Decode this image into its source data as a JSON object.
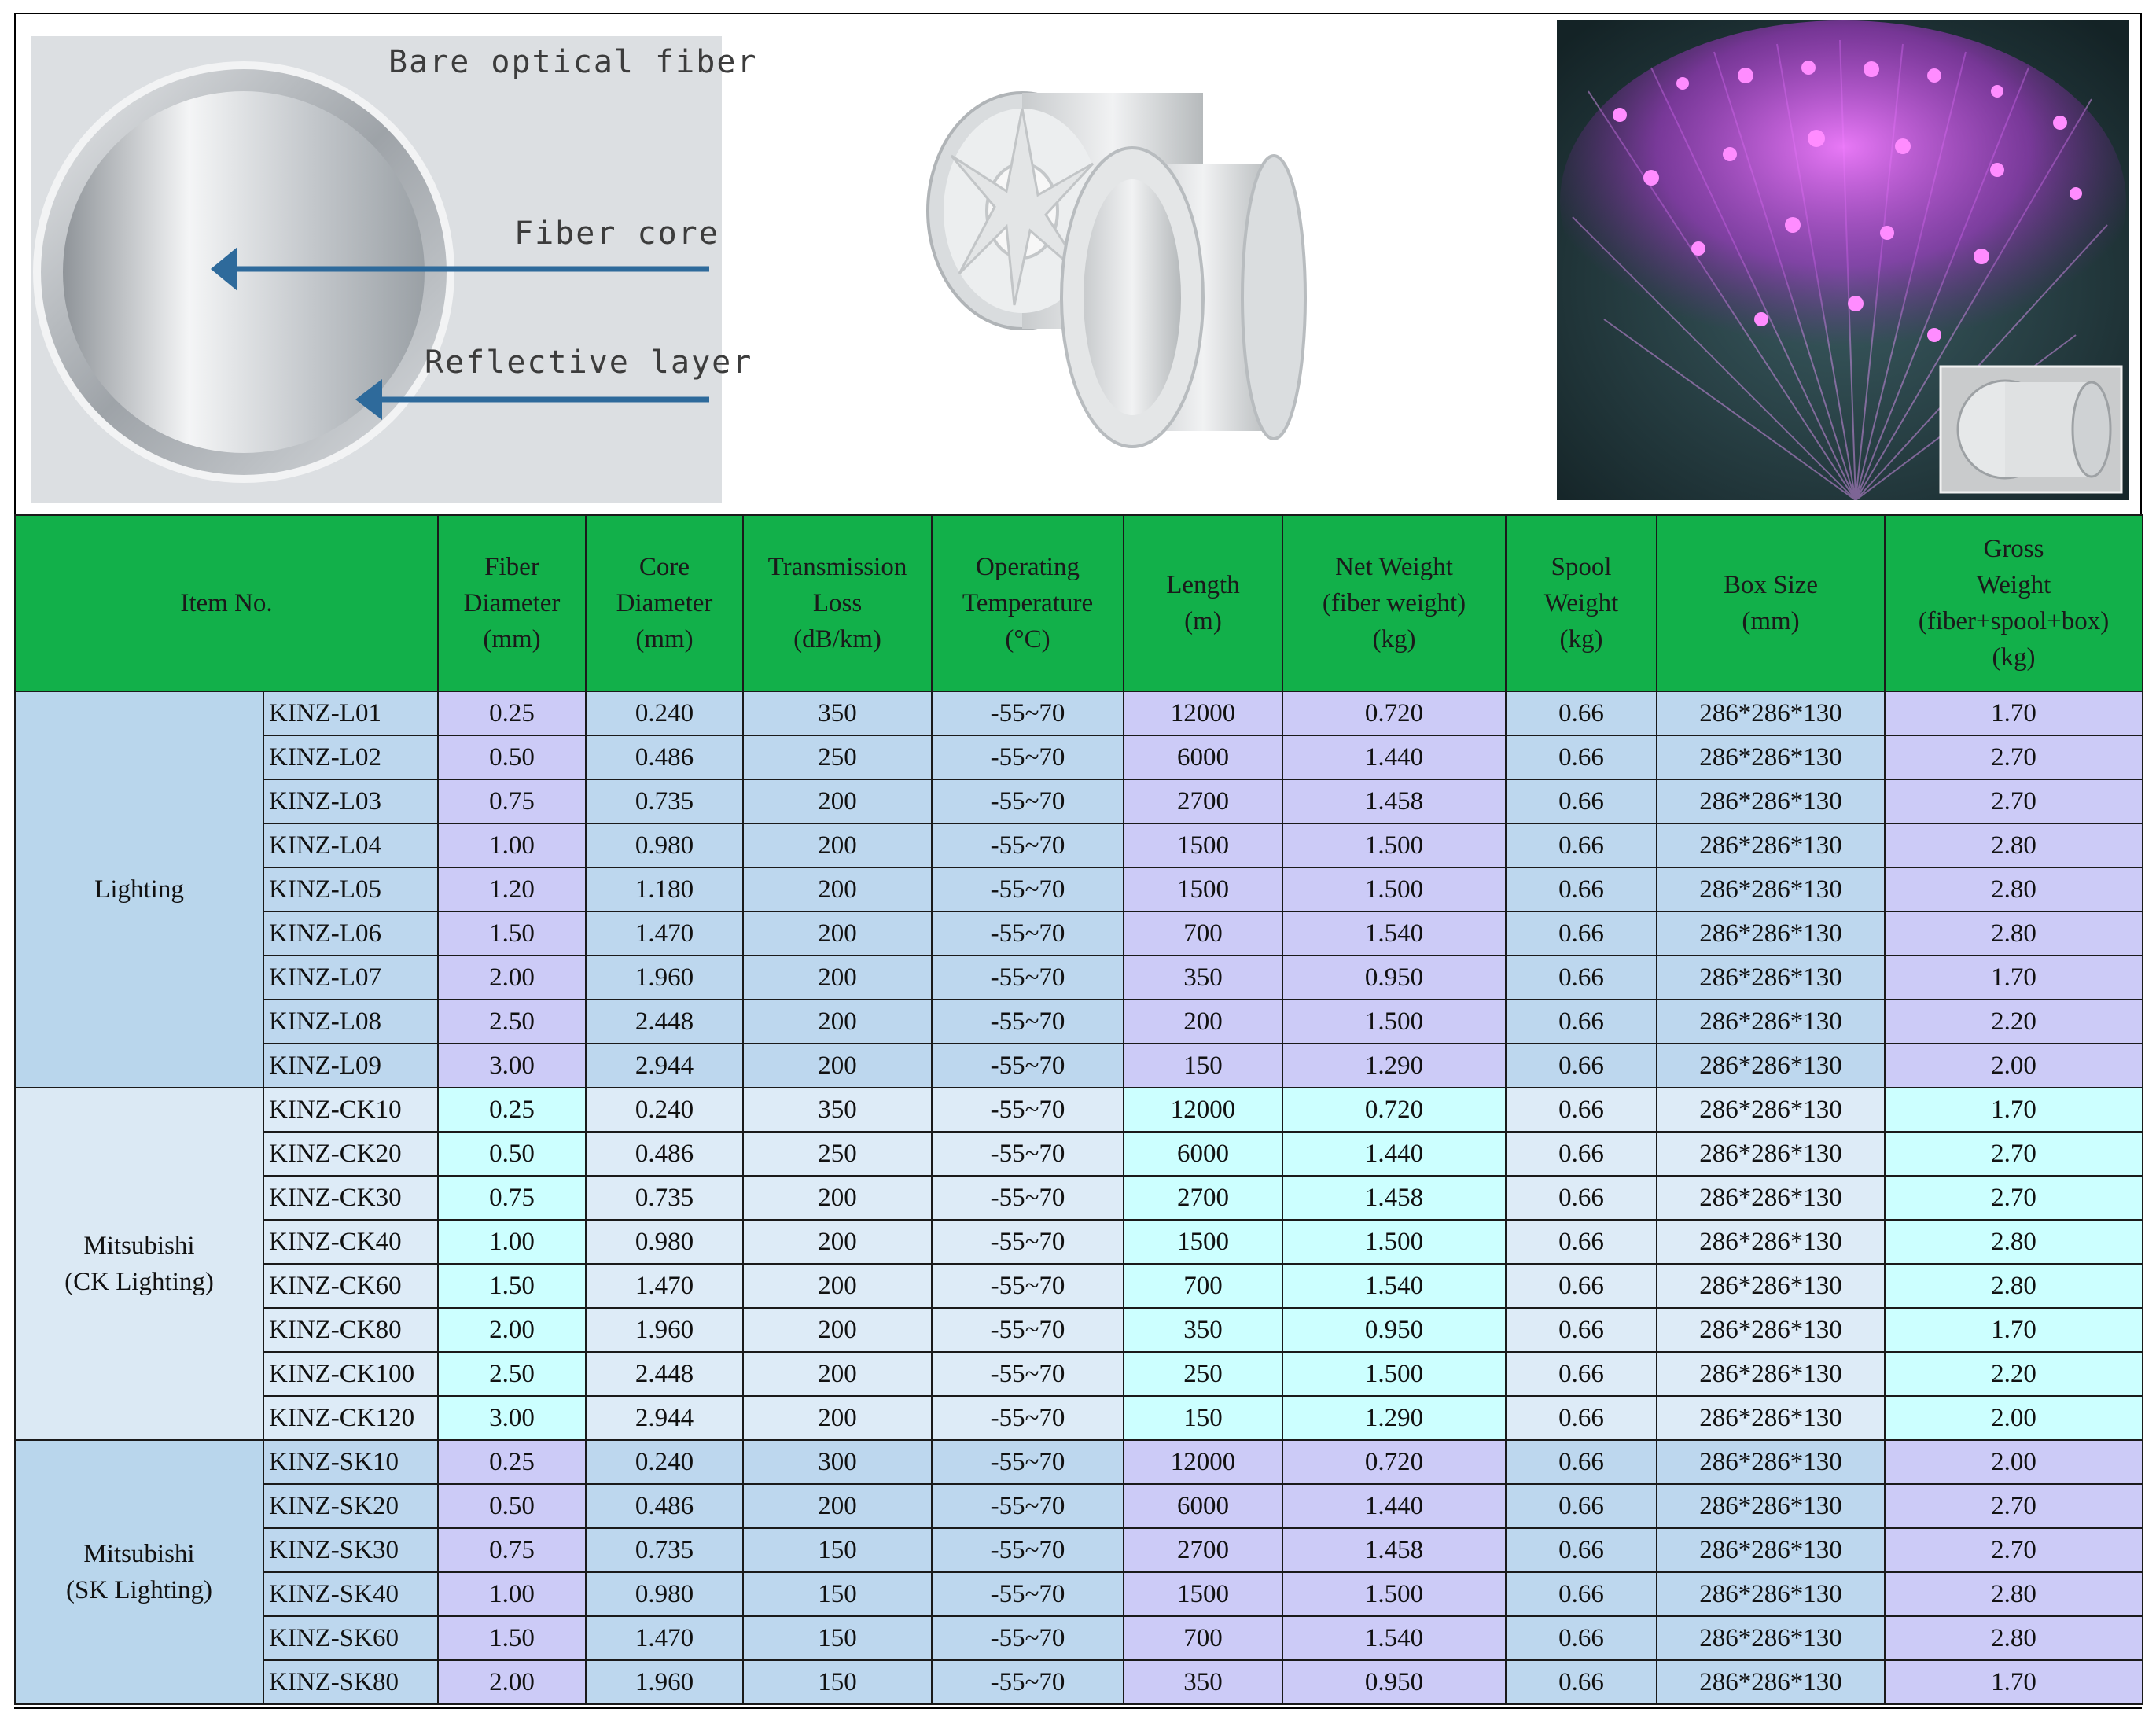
{
  "diagram": {
    "label_bare": "Bare optical fiber",
    "label_core": "Fiber core",
    "label_reflective": "Reflective layer"
  },
  "table": {
    "headers": [
      {
        "key": "item",
        "text": "Item No."
      },
      {
        "key": "fiber_dia",
        "lines": [
          "Fiber",
          "Diameter",
          "(mm)"
        ]
      },
      {
        "key": "core_dia",
        "lines": [
          "Core",
          "Diameter",
          "(mm)"
        ]
      },
      {
        "key": "loss",
        "lines": [
          "Transmission",
          "Loss",
          "(dB/km)"
        ]
      },
      {
        "key": "temp",
        "lines": [
          "Operating",
          "Temperature",
          "(°C)"
        ]
      },
      {
        "key": "length",
        "lines": [
          "Length",
          "(m)"
        ]
      },
      {
        "key": "net",
        "lines": [
          "Net Weight",
          "(fiber weight)",
          "(kg)"
        ]
      },
      {
        "key": "spool",
        "lines": [
          "Spool",
          "Weight",
          "(kg)"
        ]
      },
      {
        "key": "box",
        "lines": [
          "Box Size",
          "(mm)"
        ]
      },
      {
        "key": "gross",
        "lines": [
          "Gross",
          "Weight",
          "(fiber+spool+box)",
          "(kg)"
        ]
      }
    ],
    "groups": [
      {
        "id": "lighting",
        "name_lines": [
          "Lighting"
        ],
        "rows": [
          [
            "KINZ-L01",
            "0.25",
            "0.240",
            "350",
            "-55~70",
            "12000",
            "0.720",
            "0.66",
            "286*286*130",
            "1.70"
          ],
          [
            "KINZ-L02",
            "0.50",
            "0.486",
            "250",
            "-55~70",
            "6000",
            "1.440",
            "0.66",
            "286*286*130",
            "2.70"
          ],
          [
            "KINZ-L03",
            "0.75",
            "0.735",
            "200",
            "-55~70",
            "2700",
            "1.458",
            "0.66",
            "286*286*130",
            "2.70"
          ],
          [
            "KINZ-L04",
            "1.00",
            "0.980",
            "200",
            "-55~70",
            "1500",
            "1.500",
            "0.66",
            "286*286*130",
            "2.80"
          ],
          [
            "KINZ-L05",
            "1.20",
            "1.180",
            "200",
            "-55~70",
            "1500",
            "1.500",
            "0.66",
            "286*286*130",
            "2.80"
          ],
          [
            "KINZ-L06",
            "1.50",
            "1.470",
            "200",
            "-55~70",
            "700",
            "1.540",
            "0.66",
            "286*286*130",
            "2.80"
          ],
          [
            "KINZ-L07",
            "2.00",
            "1.960",
            "200",
            "-55~70",
            "350",
            "0.950",
            "0.66",
            "286*286*130",
            "1.70"
          ],
          [
            "KINZ-L08",
            "2.50",
            "2.448",
            "200",
            "-55~70",
            "200",
            "1.500",
            "0.66",
            "286*286*130",
            "2.20"
          ],
          [
            "KINZ-L09",
            "3.00",
            "2.944",
            "200",
            "-55~70",
            "150",
            "1.290",
            "0.66",
            "286*286*130",
            "2.00"
          ]
        ]
      },
      {
        "id": "ck",
        "name_lines": [
          "Mitsubishi",
          "(CK Lighting)"
        ],
        "rows": [
          [
            "KINZ-CK10",
            "0.25",
            "0.240",
            "350",
            "-55~70",
            "12000",
            "0.720",
            "0.66",
            "286*286*130",
            "1.70"
          ],
          [
            "KINZ-CK20",
            "0.50",
            "0.486",
            "250",
            "-55~70",
            "6000",
            "1.440",
            "0.66",
            "286*286*130",
            "2.70"
          ],
          [
            "KINZ-CK30",
            "0.75",
            "0.735",
            "200",
            "-55~70",
            "2700",
            "1.458",
            "0.66",
            "286*286*130",
            "2.70"
          ],
          [
            "KINZ-CK40",
            "1.00",
            "0.980",
            "200",
            "-55~70",
            "1500",
            "1.500",
            "0.66",
            "286*286*130",
            "2.80"
          ],
          [
            "KINZ-CK60",
            "1.50",
            "1.470",
            "200",
            "-55~70",
            "700",
            "1.540",
            "0.66",
            "286*286*130",
            "2.80"
          ],
          [
            "KINZ-CK80",
            "2.00",
            "1.960",
            "200",
            "-55~70",
            "350",
            "0.950",
            "0.66",
            "286*286*130",
            "1.70"
          ],
          [
            "KINZ-CK100",
            "2.50",
            "2.448",
            "200",
            "-55~70",
            "250",
            "1.500",
            "0.66",
            "286*286*130",
            "2.20"
          ],
          [
            "KINZ-CK120",
            "3.00",
            "2.944",
            "200",
            "-55~70",
            "150",
            "1.290",
            "0.66",
            "286*286*130",
            "2.00"
          ]
        ]
      },
      {
        "id": "sk",
        "name_lines": [
          "Mitsubishi",
          "(SK Lighting)"
        ],
        "rows": [
          [
            "KINZ-SK10",
            "0.25",
            "0.240",
            "300",
            "-55~70",
            "12000",
            "0.720",
            "0.66",
            "286*286*130",
            "2.00"
          ],
          [
            "KINZ-SK20",
            "0.50",
            "0.486",
            "200",
            "-55~70",
            "6000",
            "1.440",
            "0.66",
            "286*286*130",
            "2.70"
          ],
          [
            "KINZ-SK30",
            "0.75",
            "0.735",
            "150",
            "-55~70",
            "2700",
            "1.458",
            "0.66",
            "286*286*130",
            "2.70"
          ],
          [
            "KINZ-SK40",
            "1.00",
            "0.980",
            "150",
            "-55~70",
            "1500",
            "1.500",
            "0.66",
            "286*286*130",
            "2.80"
          ],
          [
            "KINZ-SK60",
            "1.50",
            "1.470",
            "150",
            "-55~70",
            "700",
            "1.540",
            "0.66",
            "286*286*130",
            "2.80"
          ],
          [
            "KINZ-SK80",
            "2.00",
            "1.960",
            "150",
            "-55~70",
            "350",
            "0.950",
            "0.66",
            "286*286*130",
            "1.70"
          ]
        ]
      }
    ],
    "colors": {
      "header_green": "#12b04a",
      "blue_band": "#bdd7ee",
      "lavender_band": "#cccbf7",
      "light_blue_band": "#ddebf7",
      "cyan_band": "#ccffff"
    }
  }
}
